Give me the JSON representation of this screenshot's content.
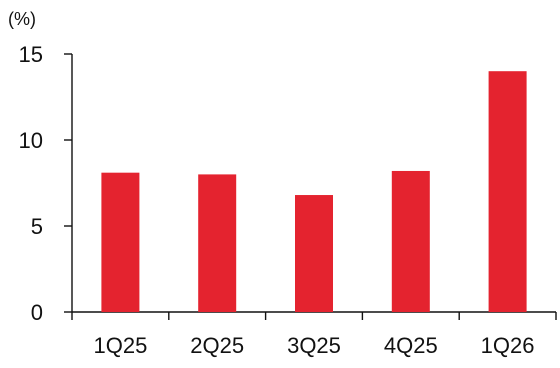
{
  "chart_data": {
    "type": "bar",
    "title": "",
    "xlabel": "",
    "ylabel": "(%)",
    "categories": [
      "1Q25",
      "2Q25",
      "3Q25",
      "4Q25",
      "1Q26"
    ],
    "values": [
      8.1,
      8.0,
      6.8,
      8.2,
      14.0
    ],
    "ylim": [
      0,
      15
    ],
    "yticks": [
      0,
      5,
      10,
      15
    ],
    "grid": false,
    "legend": "none",
    "bar_color": "#E4232F",
    "axis_color": "#111111"
  }
}
